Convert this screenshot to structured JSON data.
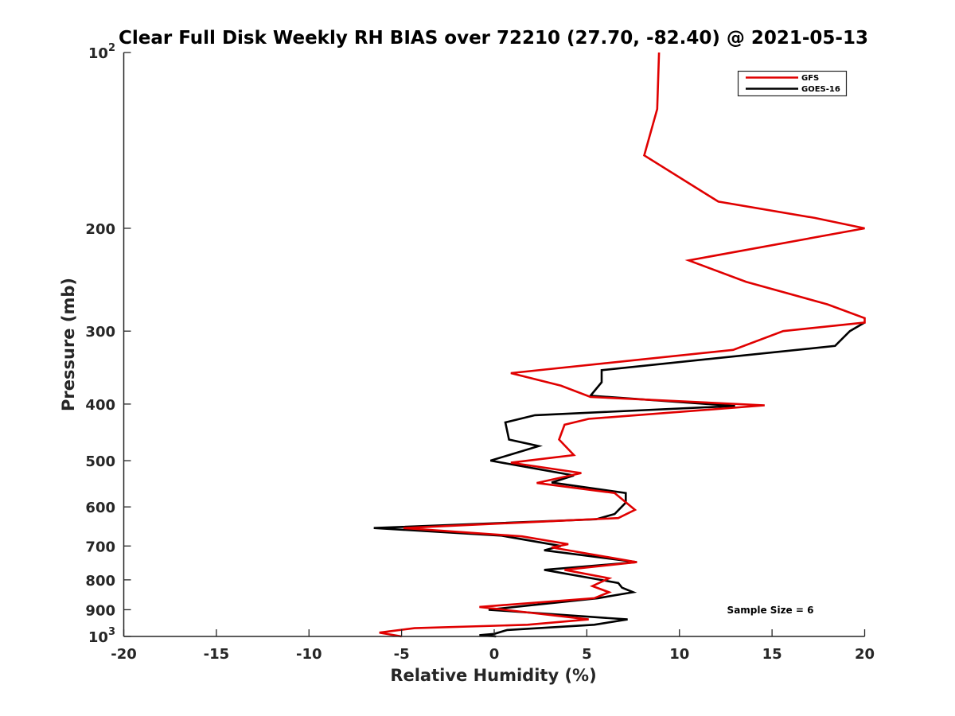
{
  "chart_data": {
    "type": "line",
    "title": "Clear Full Disk Weekly RH BIAS over 72210 (27.70, -82.40) @ 2021-05-13",
    "xlabel": "Relative Humidity (%)",
    "ylabel": "Pressure (mb)",
    "xlim": [
      -20,
      20
    ],
    "ylim": [
      100,
      1000
    ],
    "y_scale": "log",
    "y_reversed": true,
    "grid": false,
    "legend_position": "top-right",
    "x_ticks": [
      "-20",
      "-15",
      "-10",
      "-5",
      "0",
      "5",
      "10",
      "15",
      "20"
    ],
    "y_ticks": [
      {
        "value": 100,
        "base": "10",
        "exp": "2"
      },
      {
        "value": 200,
        "base": "200",
        "exp": ""
      },
      {
        "value": 300,
        "base": "300",
        "exp": ""
      },
      {
        "value": 400,
        "base": "400",
        "exp": ""
      },
      {
        "value": 500,
        "base": "500",
        "exp": ""
      },
      {
        "value": 600,
        "base": "600",
        "exp": ""
      },
      {
        "value": 700,
        "base": "700",
        "exp": ""
      },
      {
        "value": 800,
        "base": "800",
        "exp": ""
      },
      {
        "value": 900,
        "base": "900",
        "exp": ""
      },
      {
        "value": 1000,
        "base": "10",
        "exp": "3"
      }
    ],
    "annotation": "Sample Size = 6",
    "series": [
      {
        "name": "GFS",
        "color": "#e00000",
        "points": [
          [
            8.9,
            100
          ],
          [
            8.8,
            125
          ],
          [
            8.1,
            150
          ],
          [
            12.1,
            180
          ],
          [
            17.3,
            192
          ],
          [
            20.0,
            200
          ],
          [
            10.5,
            227
          ],
          [
            13.6,
            247
          ],
          [
            18.0,
            270
          ],
          [
            20.0,
            285
          ],
          [
            20.0,
            290
          ],
          [
            15.6,
            300
          ],
          [
            12.9,
            323
          ],
          [
            0.9,
            354
          ],
          [
            3.6,
            372
          ],
          [
            5.2,
            389
          ],
          [
            14.6,
            402
          ],
          [
            5.1,
            424
          ],
          [
            3.8,
            434
          ],
          [
            3.5,
            460
          ],
          [
            4.3,
            489
          ],
          [
            0.9,
            504
          ],
          [
            4.7,
            525
          ],
          [
            2.3,
            546
          ],
          [
            6.5,
            568
          ],
          [
            7.6,
            607
          ],
          [
            6.7,
            627
          ],
          [
            -4.9,
            652
          ],
          [
            1.5,
            674
          ],
          [
            4.0,
            695
          ],
          [
            3.1,
            704
          ],
          [
            7.7,
            746
          ],
          [
            3.8,
            769
          ],
          [
            6.2,
            795
          ],
          [
            5.3,
            820
          ],
          [
            6.2,
            840
          ],
          [
            5.4,
            860
          ],
          [
            -0.8,
            890
          ],
          [
            5.1,
            935
          ],
          [
            1.8,
            955
          ],
          [
            -4.3,
            968
          ],
          [
            -6.2,
            985
          ],
          [
            -5.0,
            1000
          ]
        ]
      },
      {
        "name": "GOES-16",
        "color": "#000000",
        "points": [
          [
            20.0,
            290
          ],
          [
            19.2,
            300
          ],
          [
            18.4,
            318
          ],
          [
            5.8,
            350
          ],
          [
            5.8,
            367
          ],
          [
            5.2,
            387
          ],
          [
            13.0,
            403
          ],
          [
            2.2,
            418
          ],
          [
            0.6,
            430
          ],
          [
            0.8,
            460
          ],
          [
            2.4,
            472
          ],
          [
            -0.2,
            500
          ],
          [
            4.3,
            530
          ],
          [
            3.1,
            545
          ],
          [
            7.1,
            568
          ],
          [
            7.1,
            590
          ],
          [
            6.5,
            617
          ],
          [
            5.5,
            630
          ],
          [
            -6.5,
            652
          ],
          [
            0.4,
            672
          ],
          [
            3.6,
            700
          ],
          [
            2.7,
            712
          ],
          [
            7.7,
            746
          ],
          [
            2.7,
            769
          ],
          [
            6.7,
            810
          ],
          [
            6.9,
            825
          ],
          [
            7.5,
            840
          ],
          [
            5.6,
            860
          ],
          [
            -0.3,
            900
          ],
          [
            7.2,
            935
          ],
          [
            5.4,
            955
          ],
          [
            0.7,
            975
          ],
          [
            0.0,
            990
          ],
          [
            -0.8,
            995
          ],
          [
            0.1,
            1000
          ]
        ]
      }
    ]
  }
}
